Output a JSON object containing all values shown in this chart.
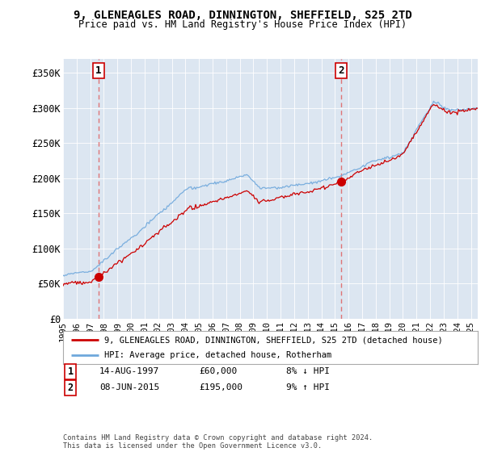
{
  "title": "9, GLENEAGLES ROAD, DINNINGTON, SHEFFIELD, S25 2TD",
  "subtitle": "Price paid vs. HM Land Registry's House Price Index (HPI)",
  "ylabel_ticks": [
    "£0",
    "£50K",
    "£100K",
    "£150K",
    "£200K",
    "£250K",
    "£300K",
    "£350K"
  ],
  "ytick_values": [
    0,
    50000,
    100000,
    150000,
    200000,
    250000,
    300000,
    350000
  ],
  "ylim": [
    0,
    370000
  ],
  "xlim_start": 1995.0,
  "xlim_end": 2025.5,
  "sale1_year": 1997.62,
  "sale1_price": 60000,
  "sale1_label": "1",
  "sale2_year": 2015.44,
  "sale2_price": 195000,
  "sale2_label": "2",
  "line1_label": "9, GLENEAGLES ROAD, DINNINGTON, SHEFFIELD, S25 2TD (detached house)",
  "line2_label": "HPI: Average price, detached house, Rotherham",
  "table_row1": [
    "1",
    "14-AUG-1997",
    "£60,000",
    "8% ↓ HPI"
  ],
  "table_row2": [
    "2",
    "08-JUN-2015",
    "£195,000",
    "9% ↑ HPI"
  ],
  "footer": "Contains HM Land Registry data © Crown copyright and database right 2024.\nThis data is licensed under the Open Government Licence v3.0.",
  "bg_color": "#dce6f1",
  "hpi_line_color": "#6fa8dc",
  "price_line_color": "#cc0000",
  "marker_color": "#cc0000",
  "dashed_line_color": "#e06060",
  "grid_color": "#ffffff",
  "xtick_years": [
    1995,
    1996,
    1997,
    1998,
    1999,
    2000,
    2001,
    2002,
    2003,
    2004,
    2005,
    2006,
    2007,
    2008,
    2009,
    2010,
    2011,
    2012,
    2013,
    2014,
    2015,
    2016,
    2017,
    2018,
    2019,
    2020,
    2021,
    2022,
    2023,
    2024,
    2025
  ]
}
